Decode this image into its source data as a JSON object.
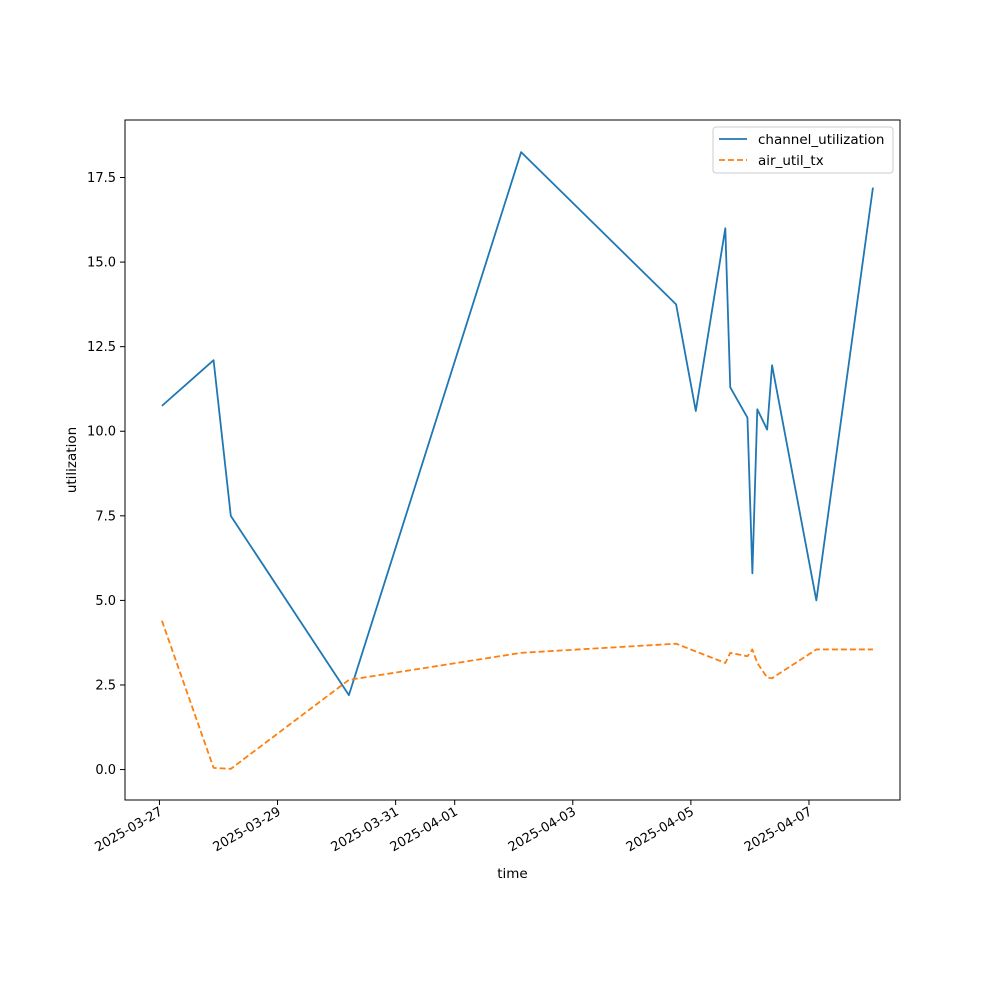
{
  "chart_data": {
    "type": "line",
    "title": "",
    "xlabel": "time",
    "ylabel": "utilization",
    "x_tick_labels": [
      "2025-03-27",
      "2025-03-29",
      "2025-03-31",
      "2025-04-01",
      "2025-04-03",
      "2025-04-05",
      "2025-04-07"
    ],
    "x_ticks": [
      "2025-03-27T00:00",
      "2025-03-29T00:00",
      "2025-03-31T00:00",
      "2025-04-01T00:00",
      "2025-04-03T00:00",
      "2025-04-05T00:00",
      "2025-04-07T00:00"
    ],
    "xlim": [
      "2025-03-26T10:00",
      "2025-04-08T13:00"
    ],
    "y_tick_labels": [
      "0.0",
      "2.5",
      "5.0",
      "7.5",
      "10.0",
      "12.5",
      "15.0",
      "17.5"
    ],
    "y_ticks": [
      0,
      2.5,
      5,
      7.5,
      10,
      12.5,
      15,
      17.5
    ],
    "ylim": [
      -0.9,
      19.2
    ],
    "grid": false,
    "legend_position": "top-right",
    "series": [
      {
        "name": "channel_utilization",
        "color": "#1f77b4",
        "style": "solid",
        "points": [
          [
            "2025-03-27T01:00",
            10.75
          ],
          [
            "2025-03-27T22:00",
            12.1
          ],
          [
            "2025-03-28T05:00",
            7.5
          ],
          [
            "2025-03-30T05:00",
            2.2
          ],
          [
            "2025-04-02T03:00",
            18.25
          ],
          [
            "2025-04-04T18:00",
            13.75
          ],
          [
            "2025-04-05T02:00",
            10.6
          ],
          [
            "2025-04-05T14:00",
            16.0
          ],
          [
            "2025-04-05T16:00",
            11.3
          ],
          [
            "2025-04-05T23:00",
            10.4
          ],
          [
            "2025-04-06T01:00",
            5.8
          ],
          [
            "2025-04-06T03:00",
            10.65
          ],
          [
            "2025-04-06T07:00",
            10.05
          ],
          [
            "2025-04-06T09:00",
            11.95
          ],
          [
            "2025-04-07T03:00",
            5.0
          ],
          [
            "2025-04-08T02:00",
            17.2
          ]
        ]
      },
      {
        "name": "air_util_tx",
        "color": "#ff7f0e",
        "style": "dashed",
        "points": [
          [
            "2025-03-27T01:00",
            4.4
          ],
          [
            "2025-03-27T22:00",
            0.05
          ],
          [
            "2025-03-28T05:00",
            0.02
          ],
          [
            "2025-03-30T05:00",
            2.65
          ],
          [
            "2025-04-02T03:00",
            3.45
          ],
          [
            "2025-04-04T18:00",
            3.72
          ],
          [
            "2025-04-05T14:00",
            3.15
          ],
          [
            "2025-04-05T16:00",
            3.45
          ],
          [
            "2025-04-05T23:00",
            3.35
          ],
          [
            "2025-04-06T01:00",
            3.55
          ],
          [
            "2025-04-06T03:00",
            3.15
          ],
          [
            "2025-04-06T07:00",
            2.72
          ],
          [
            "2025-04-06T09:00",
            2.7
          ],
          [
            "2025-04-07T03:00",
            3.55
          ],
          [
            "2025-04-08T02:00",
            3.55
          ]
        ]
      }
    ]
  }
}
